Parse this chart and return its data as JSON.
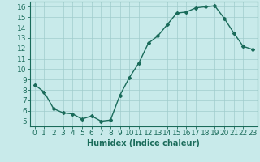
{
  "x": [
    0,
    1,
    2,
    3,
    4,
    5,
    6,
    7,
    8,
    9,
    10,
    11,
    12,
    13,
    14,
    15,
    16,
    17,
    18,
    19,
    20,
    21,
    22,
    23
  ],
  "y": [
    8.5,
    7.8,
    6.2,
    5.8,
    5.7,
    5.2,
    5.5,
    5.0,
    5.1,
    7.5,
    9.2,
    10.6,
    12.5,
    13.2,
    14.3,
    15.4,
    15.5,
    15.9,
    16.0,
    16.1,
    14.9,
    13.5,
    12.2,
    11.9
  ],
  "line_color": "#1a6b5a",
  "marker": "D",
  "marker_size": 2.0,
  "bg_color": "#c8eaea",
  "grid_color": "#a0cccc",
  "xlabel": "Humidex (Indice chaleur)",
  "xlim": [
    -0.5,
    23.5
  ],
  "ylim": [
    4.5,
    16.5
  ],
  "yticks": [
    5,
    6,
    7,
    8,
    9,
    10,
    11,
    12,
    13,
    14,
    15,
    16
  ],
  "xticks": [
    0,
    1,
    2,
    3,
    4,
    5,
    6,
    7,
    8,
    9,
    10,
    11,
    12,
    13,
    14,
    15,
    16,
    17,
    18,
    19,
    20,
    21,
    22,
    23
  ],
  "line_width": 1.0,
  "xlabel_fontsize": 7,
  "tick_fontsize": 6.5
}
